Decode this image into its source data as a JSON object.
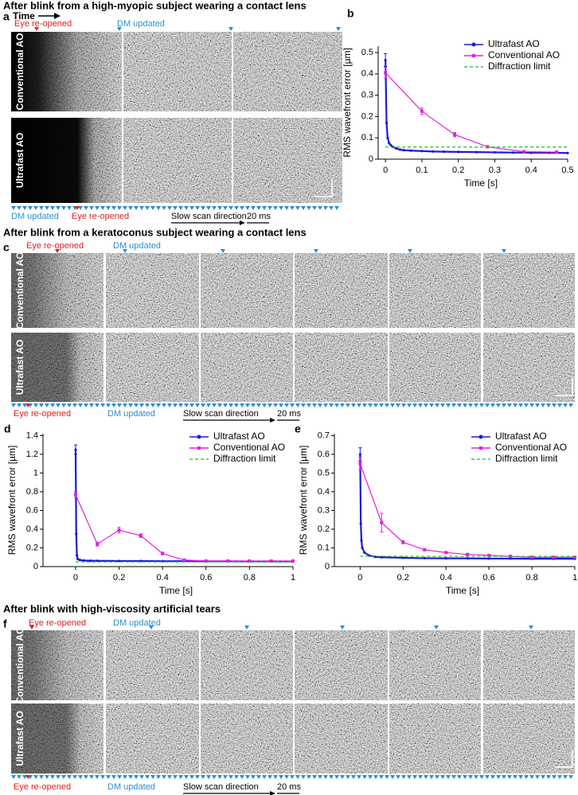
{
  "panels": [
    {
      "title": "After blink from a high-myopic subject wearing a contact lens",
      "label": "a",
      "time_label": "Time",
      "rows": [
        "Conventional AO",
        "Ultrafast AO"
      ],
      "top": [
        "Eye re-opened",
        "DM updated"
      ],
      "bottom": [
        "DM updated",
        "Eye re-opened",
        "Slow scan direction",
        "20 ms"
      ]
    },
    {
      "title": "After blink from a keratoconus subject wearing a contact lens",
      "label": "c",
      "rows": [
        "Conventional AO",
        "Ultrafast AO"
      ],
      "top": [
        "Eye re-opened",
        "DM updated"
      ],
      "bottom": [
        "Eye re-opened",
        "DM updated",
        "Slow scan direction",
        "20 ms"
      ]
    },
    {
      "title": "After blink with high-viscosity artificial tears",
      "label": "f",
      "rows": [
        "Conventional AO",
        "Ultrafast AO"
      ],
      "top": [
        "Eye re-opened",
        "DM updated"
      ],
      "bottom": [
        "Eye re-opened",
        "DM updated",
        "Slow scan direction",
        "20 ms"
      ]
    }
  ],
  "chart_data": [
    {
      "type": "line",
      "panel_label": "b",
      "xlabel": "Time [s]",
      "ylabel": "RMS wavefront error [µm]",
      "xlim": [
        -0.02,
        0.5
      ],
      "ylim": [
        0,
        0.53
      ],
      "xticks": [
        0,
        0.1,
        0.2,
        0.3,
        0.4,
        0.5
      ],
      "yticks": [
        0,
        0.1,
        0.2,
        0.3,
        0.4,
        0.5
      ],
      "legend": "upper right",
      "series": [
        {
          "name": "Ultrafast AO",
          "color": "#1a1adb",
          "marker": "circle",
          "x": [
            0,
            0.003,
            0.006,
            0.01,
            0.015,
            0.02,
            0.03,
            0.04,
            0.05,
            0.07,
            0.1,
            0.13,
            0.16,
            0.2,
            0.25,
            0.3,
            0.35,
            0.4,
            0.45,
            0.5
          ],
          "values": [
            0.465,
            0.17,
            0.1,
            0.075,
            0.065,
            0.058,
            0.05,
            0.045,
            0.042,
            0.04,
            0.038,
            0.036,
            0.035,
            0.034,
            0.033,
            0.032,
            0.031,
            0.03,
            0.03,
            0.029
          ],
          "errors": [
            0.03,
            null,
            null,
            null,
            null,
            null,
            null,
            null,
            null,
            null,
            null,
            null,
            null,
            null,
            null,
            null,
            null,
            null,
            null,
            null
          ]
        },
        {
          "name": "Conventional AO",
          "color": "#e020e0",
          "marker": "square",
          "x": [
            0,
            0.1,
            0.19,
            0.28,
            0.38,
            0.47
          ],
          "values": [
            0.405,
            0.225,
            0.115,
            0.058,
            0.035,
            0.033
          ],
          "errors": [
            0.025,
            0.015,
            0.01,
            0.005,
            0.004,
            0.004
          ]
        },
        {
          "name": "Diffraction limit",
          "color": "#22bb22",
          "dash": true,
          "x": [
            0,
            0.5
          ],
          "values": [
            0.057,
            0.057
          ]
        }
      ]
    },
    {
      "type": "line",
      "panel_label": "d",
      "xlabel": "Time [s]",
      "ylabel": "RMS wavefront error [µm]",
      "xlim": [
        -0.15,
        1
      ],
      "ylim": [
        0,
        1.42
      ],
      "xticks": [
        0,
        0.2,
        0.4,
        0.6,
        0.8,
        1
      ],
      "yticks": [
        0,
        0.2,
        0.4,
        0.6,
        0.8,
        1,
        1.2,
        1.4
      ],
      "legend": "upper right",
      "series": [
        {
          "name": "Ultrafast AO",
          "color": "#1a1adb",
          "marker": "circle",
          "x": [
            0,
            0.003,
            0.006,
            0.01,
            0.02,
            0.04,
            0.07,
            0.1,
            0.2,
            0.3,
            0.4,
            0.5,
            0.6,
            0.7,
            0.8,
            0.9,
            1
          ],
          "values": [
            1.25,
            0.35,
            0.12,
            0.08,
            0.07,
            0.065,
            0.063,
            0.062,
            0.06,
            0.06,
            0.058,
            0.058,
            0.057,
            0.057,
            0.056,
            0.056,
            0.055
          ],
          "errors": [
            0.05,
            null,
            null,
            null,
            null,
            null,
            null,
            null,
            null,
            null,
            null,
            null,
            null,
            null,
            null,
            null,
            null
          ]
        },
        {
          "name": "Conventional AO",
          "color": "#e020e0",
          "marker": "square",
          "x": [
            0,
            0.1,
            0.2,
            0.3,
            0.4,
            0.5,
            0.6,
            0.7,
            0.8,
            0.9,
            1
          ],
          "values": [
            0.77,
            0.24,
            0.39,
            0.33,
            0.14,
            0.07,
            0.06,
            0.06,
            0.06,
            0.06,
            0.06
          ],
          "errors": [
            0.03,
            0.02,
            0.03,
            0.02,
            0.015,
            0.01,
            0.008,
            0.006,
            0.006,
            0.006,
            0.006
          ]
        },
        {
          "name": "Diffraction limit",
          "color": "#22bb22",
          "dash": true,
          "x": [
            0,
            1
          ],
          "values": [
            0.05,
            0.05
          ]
        }
      ]
    },
    {
      "type": "line",
      "panel_label": "e",
      "xlabel": "Time [s]",
      "ylabel": "RMS wavefront error [µm]",
      "xlim": [
        -0.12,
        1
      ],
      "ylim": [
        0,
        0.71
      ],
      "xticks": [
        0,
        0.2,
        0.4,
        0.6,
        0.8,
        1
      ],
      "yticks": [
        0,
        0.1,
        0.2,
        0.3,
        0.4,
        0.5,
        0.6,
        0.7
      ],
      "legend": "upper right",
      "series": [
        {
          "name": "Ultrafast AO",
          "color": "#1a1adb",
          "marker": "circle",
          "x": [
            0,
            0.003,
            0.006,
            0.01,
            0.02,
            0.04,
            0.07,
            0.1,
            0.2,
            0.3,
            0.4,
            0.5,
            0.6,
            0.7,
            0.8,
            0.9,
            1
          ],
          "values": [
            0.6,
            0.23,
            0.14,
            0.1,
            0.075,
            0.06,
            0.052,
            0.05,
            0.047,
            0.045,
            0.044,
            0.044,
            0.043,
            0.043,
            0.042,
            0.042,
            0.042
          ],
          "errors": [
            0.035,
            null,
            null,
            null,
            null,
            null,
            null,
            null,
            null,
            null,
            null,
            null,
            null,
            null,
            null,
            null,
            null
          ]
        },
        {
          "name": "Conventional AO",
          "color": "#e020e0",
          "marker": "square",
          "x": [
            0,
            0.1,
            0.2,
            0.3,
            0.4,
            0.5,
            0.6,
            0.7,
            0.8,
            0.9,
            1
          ],
          "values": [
            0.55,
            0.235,
            0.13,
            0.09,
            0.075,
            0.065,
            0.06,
            0.055,
            0.05,
            0.05,
            0.05
          ],
          "errors": [
            0.035,
            0.05,
            0.008,
            0.005,
            0.004,
            0.004,
            0.004,
            0.004,
            0.004,
            0.004,
            0.004
          ]
        },
        {
          "name": "Diffraction limit",
          "color": "#22bb22",
          "dash": true,
          "x": [
            0,
            1
          ],
          "values": [
            0.055,
            0.055
          ]
        }
      ]
    }
  ]
}
